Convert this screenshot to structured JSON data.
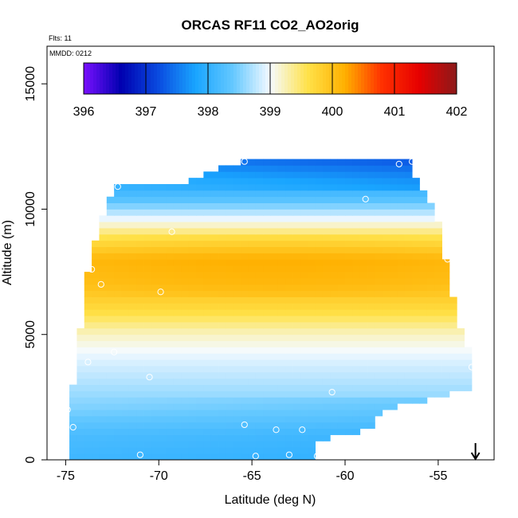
{
  "chart_data": {
    "type": "heatmap",
    "title": "ORCAS RF11 CO2_AO2orig",
    "flights_label": "Flts: 11",
    "mmdd_label": "MMDD: 0212",
    "xlabel": "Latitude (deg N)",
    "ylabel": "Altitude (m)",
    "xlim": [
      -76,
      -52
    ],
    "ylim": [
      0,
      16500
    ],
    "x_ticks": [
      -75,
      -70,
      -65,
      -60,
      -55
    ],
    "x_tick_labels": [
      "-75",
      "-70",
      "-65",
      "-60",
      "-55"
    ],
    "y_ticks": [
      0,
      5000,
      10000,
      15000
    ],
    "y_tick_labels": [
      "0",
      "5000",
      "10000",
      "15000"
    ],
    "colorbar": {
      "min": 396,
      "max": 402,
      "ticks": [
        396,
        397,
        398,
        399,
        400,
        401,
        402
      ],
      "tick_labels": [
        "396",
        "397",
        "398",
        "399",
        "400",
        "401",
        "402"
      ],
      "colors": [
        "#7a10ff",
        "#0000b0",
        "#0a4be0",
        "#19a5ff",
        "#64c8ff",
        "#f5faff",
        "#ffe24a",
        "#ffb000",
        "#ff3000",
        "#e60000",
        "#8b1a1a"
      ]
    },
    "outline": {
      "left": [
        [
          0,
          -75.0
        ],
        [
          2000,
          -74.8
        ],
        [
          4000,
          -74.4
        ],
        [
          5000,
          -74.3
        ],
        [
          6000,
          -74.0
        ],
        [
          7500,
          -73.8
        ],
        [
          9000,
          -73.3
        ],
        [
          10000,
          -72.9
        ],
        [
          10900,
          -72.3
        ]
      ],
      "right": [
        [
          700,
          -61.7
        ],
        [
          1200,
          -58.8
        ],
        [
          2000,
          -57.8
        ],
        [
          2800,
          -53.2
        ],
        [
          4000,
          -53.2
        ],
        [
          5500,
          -53.9
        ],
        [
          7200,
          -54.4
        ],
        [
          9000,
          -54.8
        ],
        [
          10500,
          -55.5
        ],
        [
          11500,
          -56.3
        ],
        [
          12000,
          -56.5
        ]
      ],
      "top": [
        [
          -72.3,
          10900
        ],
        [
          -69.0,
          11000
        ],
        [
          -65.6,
          11900
        ],
        [
          -56.3,
          12000
        ]
      ]
    },
    "profile": [
      {
        "alt": 0,
        "value": 398.1
      },
      {
        "alt": 1000,
        "value": 398.2
      },
      {
        "alt": 2000,
        "value": 398.5
      },
      {
        "alt": 3000,
        "value": 398.7
      },
      {
        "alt": 4000,
        "value": 398.9
      },
      {
        "alt": 5000,
        "value": 399.2
      },
      {
        "alt": 6000,
        "value": 399.7
      },
      {
        "alt": 7000,
        "value": 400.0
      },
      {
        "alt": 8000,
        "value": 400.1
      },
      {
        "alt": 9000,
        "value": 399.5
      },
      {
        "alt": 9800,
        "value": 398.8
      },
      {
        "alt": 10500,
        "value": 398.2
      },
      {
        "alt": 11200,
        "value": 398.0
      },
      {
        "alt": 12000,
        "value": 397.6
      }
    ],
    "sample_points": [
      {
        "lat": -75.1,
        "alt": 100
      },
      {
        "lat": -74.9,
        "alt": 2000
      },
      {
        "lat": -74.6,
        "alt": 1300
      },
      {
        "lat": -73.8,
        "alt": 3900
      },
      {
        "lat": -73.6,
        "alt": 7600
      },
      {
        "lat": -73.1,
        "alt": 7000
      },
      {
        "lat": -72.4,
        "alt": 4300
      },
      {
        "lat": -71.0,
        "alt": 200
      },
      {
        "lat": -70.5,
        "alt": 3300
      },
      {
        "lat": -69.9,
        "alt": 6700
      },
      {
        "lat": -69.3,
        "alt": 9100
      },
      {
        "lat": -72.2,
        "alt": 10900
      },
      {
        "lat": -65.4,
        "alt": 1400
      },
      {
        "lat": -64.8,
        "alt": 150
      },
      {
        "lat": -63.7,
        "alt": 1200
      },
      {
        "lat": -63.0,
        "alt": 200
      },
      {
        "lat": -62.3,
        "alt": 1200
      },
      {
        "lat": -61.5,
        "alt": 150
      },
      {
        "lat": -61.1,
        "alt": 150
      },
      {
        "lat": -60.7,
        "alt": 2700
      },
      {
        "lat": -65.4,
        "alt": 11900
      },
      {
        "lat": -58.9,
        "alt": 10400
      },
      {
        "lat": -57.1,
        "alt": 11800
      },
      {
        "lat": -56.4,
        "alt": 11900
      },
      {
        "lat": -54.5,
        "alt": 8000
      },
      {
        "lat": -53.2,
        "alt": 3700
      }
    ],
    "current_position_arrow": {
      "lat": -53.0
    }
  }
}
